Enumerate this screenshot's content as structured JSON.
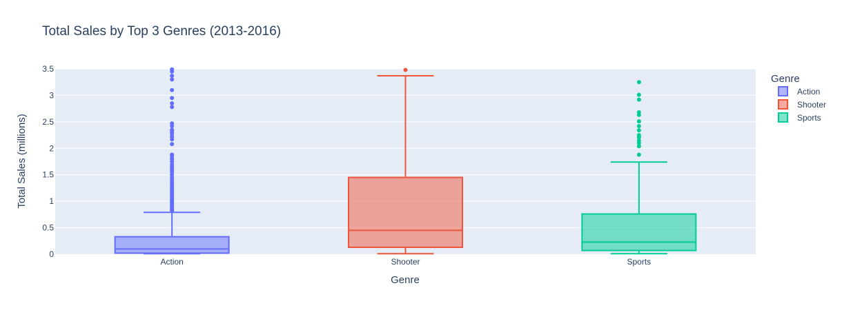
{
  "chart_data": {
    "type": "box",
    "title": "Total Sales by Top 3 Genres (2013-2016)",
    "xlabel": "Genre",
    "ylabel": "Total Sales (millions)",
    "ylim": [
      0,
      3.5
    ],
    "yticks": [
      0,
      0.5,
      1,
      1.5,
      2,
      2.5,
      3,
      3.5
    ],
    "ytick_labels": [
      "0",
      "0.5",
      "1",
      "1.5",
      "2",
      "2.5",
      "3",
      "3.5"
    ],
    "grid": true,
    "legend_title": "Genre",
    "legend_position": "right",
    "series": [
      {
        "name": "Action",
        "color": "#636efa",
        "fill": "rgba(99,110,250,0.5)",
        "min": 0.01,
        "q1": 0.02,
        "median": 0.1,
        "q3": 0.33,
        "whisker_high": 0.79,
        "outliers": [
          0.82,
          0.84,
          0.86,
          0.88,
          0.9,
          0.92,
          0.95,
          0.98,
          1.0,
          1.02,
          1.05,
          1.08,
          1.1,
          1.12,
          1.15,
          1.18,
          1.2,
          1.22,
          1.25,
          1.28,
          1.32,
          1.36,
          1.4,
          1.45,
          1.5,
          1.55,
          1.58,
          1.62,
          1.66,
          1.7,
          1.75,
          1.8,
          1.85,
          1.88,
          2.08,
          2.17,
          2.22,
          2.27,
          2.3,
          2.33,
          2.35,
          2.42,
          2.47,
          2.78,
          2.85,
          2.95,
          3.1,
          3.3,
          3.37,
          3.45,
          3.49
        ]
      },
      {
        "name": "Shooter",
        "color": "#ef553b",
        "fill": "rgba(239,85,59,0.5)",
        "min": 0.01,
        "q1": 0.13,
        "median": 0.45,
        "q3": 1.45,
        "whisker_high": 3.37,
        "outliers": [
          3.48
        ]
      },
      {
        "name": "Sports",
        "color": "#00cc96",
        "fill": "rgba(0,204,150,0.5)",
        "min": 0.01,
        "q1": 0.07,
        "median": 0.23,
        "q3": 0.76,
        "whisker_high": 1.74,
        "outliers": [
          1.88,
          2.04,
          2.1,
          2.15,
          2.21,
          2.25,
          2.34,
          2.42,
          2.51,
          2.63,
          2.68,
          2.92,
          3.01,
          3.25
        ]
      }
    ]
  }
}
